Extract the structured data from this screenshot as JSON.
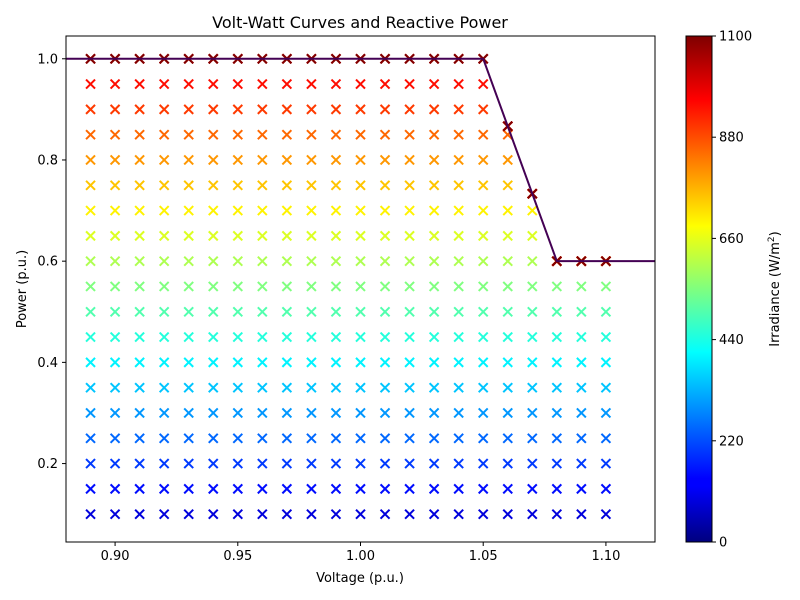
{
  "chart_data": {
    "type": "scatter",
    "title": "Volt-Watt Curves and Reactive Power",
    "xlabel": "Voltage (p.u.)",
    "ylabel": "Power (p.u.)",
    "xlim": [
      0.88,
      1.12
    ],
    "ylim": [
      0.045,
      1.045
    ],
    "xticks": [
      0.9,
      0.95,
      1.0,
      1.05,
      1.1
    ],
    "xtick_labels": [
      "0.90",
      "0.95",
      "1.00",
      "1.05",
      "1.10"
    ],
    "yticks": [
      0.2,
      0.4,
      0.6,
      0.8,
      1.0
    ],
    "ytick_labels": [
      "0.2",
      "0.4",
      "0.6",
      "0.8",
      "1.0"
    ],
    "grid": false,
    "legend": "none",
    "marker": "x",
    "colormap": "jet",
    "colorbar": {
      "label_prefix": "Irradiance ",
      "label_unit": "(W/m",
      "label_sup": "2",
      "label_suffix": ")",
      "range": [
        0,
        1100
      ],
      "ticks": [
        0,
        220,
        440,
        660,
        880,
        1100
      ],
      "tick_labels": [
        "0",
        "220",
        "440",
        "660",
        "880",
        "1100"
      ]
    },
    "volt_watt_curve": {
      "color": "#440154",
      "x": [
        0.88,
        1.05,
        1.08,
        1.12
      ],
      "y": [
        1.0,
        1.0,
        0.6,
        0.6
      ]
    },
    "scatter_grid": {
      "voltages": [
        0.89,
        0.9,
        0.91,
        0.92,
        0.93,
        0.94,
        0.95,
        0.96,
        0.97,
        0.98,
        0.99,
        1.0,
        1.01,
        1.02,
        1.03,
        1.04,
        1.05,
        1.06,
        1.07,
        1.08,
        1.09,
        1.1
      ],
      "irradiances": [
        100,
        150,
        200,
        250,
        300,
        350,
        400,
        450,
        500,
        550,
        600,
        650,
        700,
        750,
        800,
        850,
        900,
        950,
        1000,
        1050,
        1100
      ],
      "power_rule": "min(irradiance/1000, curtailment limit)",
      "curtailment_limit": [
        {
          "voltage": 1.06,
          "limit": 0.8667
        },
        {
          "voltage": 1.07,
          "limit": 0.7333
        },
        {
          "voltage": 1.08,
          "limit": 0.6
        },
        {
          "voltage": 1.09,
          "limit": 0.6
        },
        {
          "voltage": 1.1,
          "limit": 0.6
        }
      ]
    }
  }
}
